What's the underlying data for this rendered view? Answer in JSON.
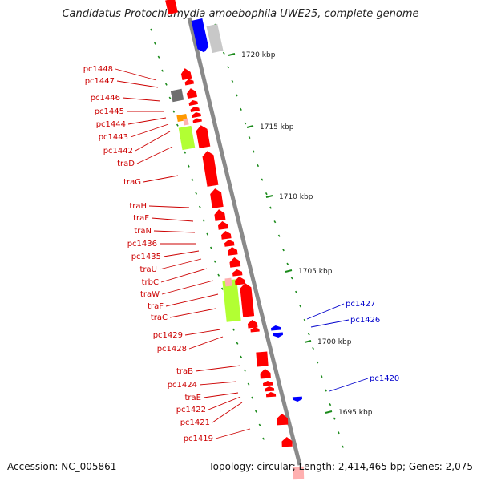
{
  "title": "Candidatus Protochlamydia amoebophila UWE25, complete genome",
  "footer": {
    "accession": "Accession: NC_005861",
    "summary": "Topology: circular; Length: 2,414,465 bp; Genes: 2,075"
  },
  "colors": {
    "backbone": "#8a8a8a",
    "gene_red": "#ff0000",
    "gene_blue": "#0000ff",
    "gene_gray": "#6e6e6e",
    "gene_lightgray": "#c8c8c8",
    "gene_green": "#b2ff33",
    "gene_orange": "#ff9900",
    "gene_pink": "#ffb0b0",
    "tick": "#1a8a1a",
    "label_left": "#cc0000",
    "label_right": "#0000cc"
  },
  "scale_labels": [
    "1720 kbp",
    "1715 kbp",
    "1710 kbp",
    "1705 kbp",
    "1700 kbp",
    "1695 kbp"
  ],
  "left_labels": [
    "pc1448",
    "pc1447",
    "pc1446",
    "pc1445",
    "pc1444",
    "pc1443",
    "pc1442",
    "traD",
    "traG",
    "traH",
    "traF",
    "traN",
    "pc1436",
    "pc1435",
    "traU",
    "trbC",
    "traW",
    "traF",
    "traC",
    "pc1429",
    "pc1428",
    "traB",
    "pc1424",
    "traE",
    "pc1422",
    "pc1421",
    "pc1419"
  ],
  "right_labels": [
    "pc1427",
    "pc1426",
    "pc1420"
  ]
}
